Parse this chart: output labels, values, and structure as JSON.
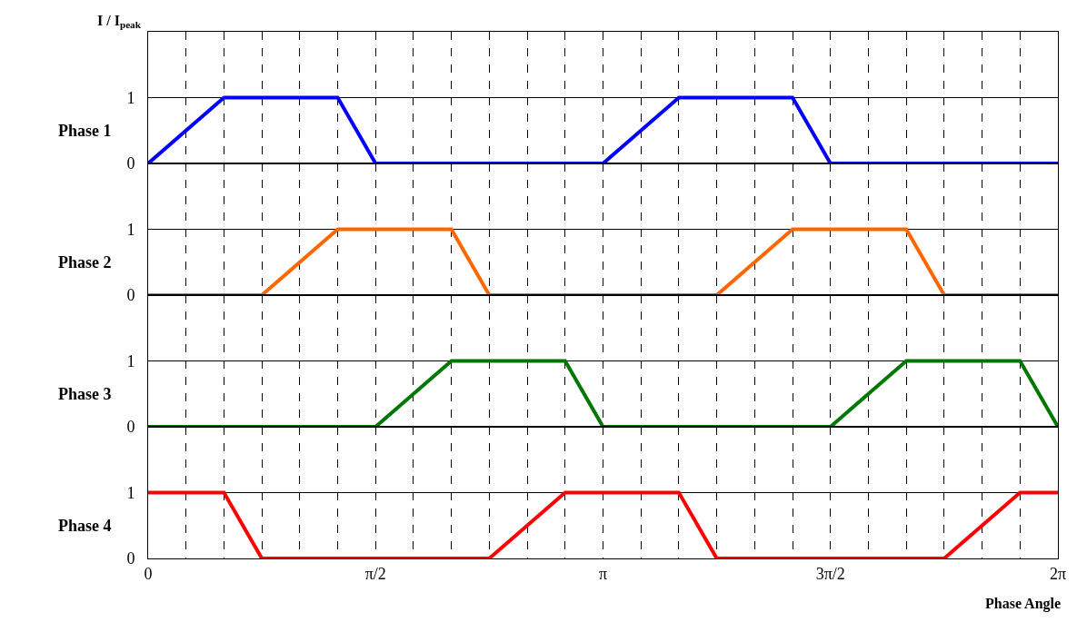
{
  "chart_data": [
    {
      "type": "line",
      "ylabel": "Phase 1",
      "annotations": [
        "I / I$_{peak}$"
      ],
      "tick_labels": "y",
      "grid": "x",
      "ref_lines": [
        {
          "axis": "y",
          "value": 1,
          "color": "#000000"
        }
      ],
      "xlim": [
        0,
        6.2832
      ],
      "ylim": [
        0,
        2
      ],
      "yticks": [
        0,
        1
      ],
      "xticks": [
        {
          "value": 0,
          "label": null
        },
        {
          "value": 0.2618,
          "label": null
        },
        {
          "value": 0.5236,
          "label": null
        },
        {
          "value": 0.7854,
          "label": null
        },
        {
          "value": 1.0472,
          "label": null
        },
        {
          "value": 1.309,
          "label": null
        },
        {
          "value": 1.5708,
          "label": null
        },
        {
          "value": 1.8326,
          "label": null
        },
        {
          "value": 2.0944,
          "label": null
        },
        {
          "value": 2.3562,
          "label": null
        },
        {
          "value": 2.618,
          "label": null
        },
        {
          "value": 2.8798,
          "label": null
        },
        {
          "value": 3.1416,
          "label": null
        },
        {
          "value": 3.4034,
          "label": null
        },
        {
          "value": 3.6652,
          "label": null
        },
        {
          "value": 3.927,
          "label": null
        },
        {
          "value": 4.1888,
          "label": null
        },
        {
          "value": 4.4506,
          "label": null
        },
        {
          "value": 4.7124,
          "label": null
        },
        {
          "value": 4.9742,
          "label": null
        },
        {
          "value": 5.236,
          "label": null
        },
        {
          "value": 5.4978,
          "label": null
        },
        {
          "value": 5.7596,
          "label": null
        },
        {
          "value": 6.0214,
          "label": null
        },
        {
          "value": 6.2832,
          "label": null
        }
      ],
      "series": [
        {
          "color": "#0000ff",
          "x": [
            0,
            0.5236,
            1.309,
            1.5708,
            3.1416,
            3.6652,
            4.4506,
            4.7124,
            6.2832
          ],
          "values": [
            0,
            1,
            1,
            0,
            0,
            1,
            1,
            0,
            0
          ]
        }
      ]
    },
    {
      "type": "line",
      "ylabel": "Phase 2",
      "tick_labels": "y",
      "grid": "x",
      "ref_lines": [
        {
          "axis": "y",
          "value": 1,
          "color": "#000000"
        }
      ],
      "xlim": [
        0,
        6.2832
      ],
      "ylim": [
        0,
        2
      ],
      "yticks": [
        0,
        1
      ],
      "xticks": [
        {
          "value": 0,
          "label": null
        },
        {
          "value": 0.2618,
          "label": null
        },
        {
          "value": 0.5236,
          "label": null
        },
        {
          "value": 0.7854,
          "label": null
        },
        {
          "value": 1.0472,
          "label": null
        },
        {
          "value": 1.309,
          "label": null
        },
        {
          "value": 1.5708,
          "label": null
        },
        {
          "value": 1.8326,
          "label": null
        },
        {
          "value": 2.0944,
          "label": null
        },
        {
          "value": 2.3562,
          "label": null
        },
        {
          "value": 2.618,
          "label": null
        },
        {
          "value": 2.8798,
          "label": null
        },
        {
          "value": 3.1416,
          "label": null
        },
        {
          "value": 3.4034,
          "label": null
        },
        {
          "value": 3.6652,
          "label": null
        },
        {
          "value": 3.927,
          "label": null
        },
        {
          "value": 4.1888,
          "label": null
        },
        {
          "value": 4.4506,
          "label": null
        },
        {
          "value": 4.7124,
          "label": null
        },
        {
          "value": 4.9742,
          "label": null
        },
        {
          "value": 5.236,
          "label": null
        },
        {
          "value": 5.4978,
          "label": null
        },
        {
          "value": 5.7596,
          "label": null
        },
        {
          "value": 6.0214,
          "label": null
        },
        {
          "value": 6.2832,
          "label": null
        }
      ],
      "series": [
        {
          "color": "#ff6600",
          "x": [
            0,
            0.7854,
            1.309,
            2.0944,
            2.3562,
            3.927,
            4.4506,
            5.236,
            5.4978,
            6.2832
          ],
          "values": [
            0,
            0,
            1,
            1,
            0,
            0,
            1,
            1,
            0,
            0
          ]
        }
      ]
    },
    {
      "type": "line",
      "ylabel": "Phase 3",
      "tick_labels": "y",
      "grid": "x",
      "ref_lines": [
        {
          "axis": "y",
          "value": 1,
          "color": "#000000"
        }
      ],
      "xlim": [
        0,
        6.2832
      ],
      "ylim": [
        0,
        2
      ],
      "yticks": [
        0,
        1
      ],
      "xticks": [
        {
          "value": 0,
          "label": null
        },
        {
          "value": 0.2618,
          "label": null
        },
        {
          "value": 0.5236,
          "label": null
        },
        {
          "value": 0.7854,
          "label": null
        },
        {
          "value": 1.0472,
          "label": null
        },
        {
          "value": 1.309,
          "label": null
        },
        {
          "value": 1.5708,
          "label": null
        },
        {
          "value": 1.8326,
          "label": null
        },
        {
          "value": 2.0944,
          "label": null
        },
        {
          "value": 2.3562,
          "label": null
        },
        {
          "value": 2.618,
          "label": null
        },
        {
          "value": 2.8798,
          "label": null
        },
        {
          "value": 3.1416,
          "label": null
        },
        {
          "value": 3.4034,
          "label": null
        },
        {
          "value": 3.6652,
          "label": null
        },
        {
          "value": 3.927,
          "label": null
        },
        {
          "value": 4.1888,
          "label": null
        },
        {
          "value": 4.4506,
          "label": null
        },
        {
          "value": 4.7124,
          "label": null
        },
        {
          "value": 4.9742,
          "label": null
        },
        {
          "value": 5.236,
          "label": null
        },
        {
          "value": 5.4978,
          "label": null
        },
        {
          "value": 5.7596,
          "label": null
        },
        {
          "value": 6.0214,
          "label": null
        },
        {
          "value": 6.2832,
          "label": null
        }
      ],
      "series": [
        {
          "color": "#007700",
          "x": [
            0,
            1.5708,
            2.0944,
            2.8798,
            3.1416,
            4.7124,
            5.236,
            6.0214,
            6.2832
          ],
          "values": [
            0,
            0,
            1,
            1,
            0,
            0,
            1,
            1,
            0
          ]
        }
      ]
    },
    {
      "type": "line",
      "ylabel": "Phase 4",
      "xlabel": "Phase Angle",
      "grid": "x",
      "ref_lines": [
        {
          "axis": "y",
          "value": 1,
          "color": "#000000"
        }
      ],
      "xlim": [
        0,
        6.2832
      ],
      "ylim": [
        0,
        2
      ],
      "yticks": [
        0,
        1
      ],
      "xticks": [
        {
          "value": 0,
          "label": "0"
        },
        {
          "value": 0.2618,
          "label": null
        },
        {
          "value": 0.5236,
          "label": null
        },
        {
          "value": 0.7854,
          "label": null
        },
        {
          "value": 1.0472,
          "label": null
        },
        {
          "value": 1.309,
          "label": null
        },
        {
          "value": 1.5708,
          "label": "π/2"
        },
        {
          "value": 1.8326,
          "label": null
        },
        {
          "value": 2.0944,
          "label": null
        },
        {
          "value": 2.3562,
          "label": null
        },
        {
          "value": 2.618,
          "label": null
        },
        {
          "value": 2.8798,
          "label": null
        },
        {
          "value": 3.1416,
          "label": "π"
        },
        {
          "value": 3.4034,
          "label": null
        },
        {
          "value": 3.6652,
          "label": null
        },
        {
          "value": 3.927,
          "label": null
        },
        {
          "value": 4.1888,
          "label": null
        },
        {
          "value": 4.4506,
          "label": null
        },
        {
          "value": 4.7124,
          "label": "3π/2"
        },
        {
          "value": 4.9742,
          "label": null
        },
        {
          "value": 5.236,
          "label": null
        },
        {
          "value": 5.4978,
          "label": null
        },
        {
          "value": 5.7596,
          "label": null
        },
        {
          "value": 6.0214,
          "label": null
        },
        {
          "value": 6.2832,
          "label": "2π"
        }
      ],
      "series": [
        {
          "color": "#ff0000",
          "x": [
            0,
            0.5236,
            0.7854,
            2.3562,
            2.8798,
            3.6652,
            3.927,
            5.4978,
            6.0214,
            6.2832
          ],
          "values": [
            1,
            1,
            0,
            0,
            1,
            1,
            0,
            0,
            1,
            1
          ]
        }
      ]
    }
  ]
}
